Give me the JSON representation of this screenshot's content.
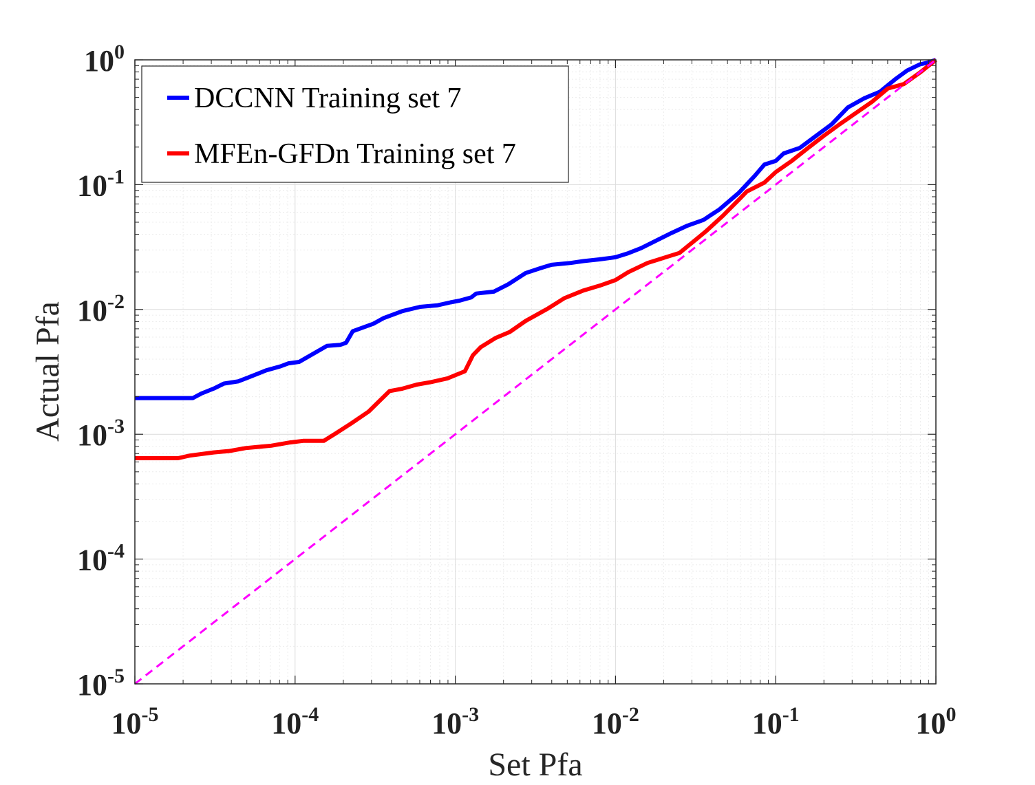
{
  "chart_data": {
    "type": "line",
    "xlabel": "Set Pfa",
    "ylabel": "Actual Pfa",
    "xscale": "log",
    "yscale": "log",
    "xlim": [
      1e-05,
      1
    ],
    "ylim": [
      1e-05,
      1
    ],
    "grid": true,
    "minor_grid": true,
    "legend_position": "top-left",
    "x_ticks": [
      {
        "base": "10",
        "exp": "-5"
      },
      {
        "base": "10",
        "exp": "-4"
      },
      {
        "base": "10",
        "exp": "-3"
      },
      {
        "base": "10",
        "exp": "-2"
      },
      {
        "base": "10",
        "exp": "-1"
      },
      {
        "base": "10",
        "exp": "0"
      }
    ],
    "y_ticks": [
      {
        "base": "10",
        "exp": "-5"
      },
      {
        "base": "10",
        "exp": "-4"
      },
      {
        "base": "10",
        "exp": "-3"
      },
      {
        "base": "10",
        "exp": "-2"
      },
      {
        "base": "10",
        "exp": "-1"
      },
      {
        "base": "10",
        "exp": "0"
      }
    ],
    "series": [
      {
        "name": "DCCNN Training set 7",
        "color": "#0000ff",
        "style": "solid",
        "points": [
          [
            1e-05,
            0.00195
          ],
          [
            2.3e-05,
            0.00195
          ],
          [
            2.6e-05,
            0.00212
          ],
          [
            3.1e-05,
            0.00232
          ],
          [
            3.6e-05,
            0.00255
          ],
          [
            4.4e-05,
            0.00265
          ],
          [
            5.1e-05,
            0.00285
          ],
          [
            6.6e-05,
            0.00325
          ],
          [
            8.1e-05,
            0.0035
          ],
          [
            9.1e-05,
            0.0037
          ],
          [
            0.000106,
            0.0038
          ],
          [
            0.000158,
            0.0051
          ],
          [
            0.000191,
            0.0052
          ],
          [
            0.000208,
            0.0054
          ],
          [
            0.000229,
            0.0067
          ],
          [
            0.000309,
            0.0077
          ],
          [
            0.000355,
            0.0085
          ],
          [
            0.000468,
            0.0097
          ],
          [
            0.000603,
            0.0105
          ],
          [
            0.000776,
            0.0108
          ],
          [
            0.000933,
            0.0114
          ],
          [
            0.001072,
            0.0118
          ],
          [
            0.001259,
            0.0125
          ],
          [
            0.001349,
            0.0134
          ],
          [
            0.001738,
            0.0139
          ],
          [
            0.002138,
            0.0159
          ],
          [
            0.002754,
            0.0196
          ],
          [
            0.003388,
            0.0214
          ],
          [
            0.003981,
            0.0228
          ],
          [
            0.005248,
            0.0236
          ],
          [
            0.00631,
            0.0244
          ],
          [
            0.007943,
            0.0252
          ],
          [
            0.01,
            0.0262
          ],
          [
            0.012,
            0.0282
          ],
          [
            0.01445,
            0.031
          ],
          [
            0.01905,
            0.037
          ],
          [
            0.02239,
            0.041
          ],
          [
            0.02818,
            0.047
          ],
          [
            0.03548,
            0.0522
          ],
          [
            0.0389,
            0.0565
          ],
          [
            0.04467,
            0.0635
          ],
          [
            0.05888,
            0.086
          ],
          [
            0.07413,
            0.118
          ],
          [
            0.08511,
            0.145
          ],
          [
            0.1,
            0.155
          ],
          [
            0.1122,
            0.178
          ],
          [
            0.1413,
            0.197
          ],
          [
            0.1778,
            0.245
          ],
          [
            0.2239,
            0.305
          ],
          [
            0.2818,
            0.415
          ],
          [
            0.3548,
            0.49
          ],
          [
            0.4467,
            0.555
          ],
          [
            0.5623,
            0.705
          ],
          [
            0.6607,
            0.82
          ],
          [
            0.7943,
            0.92
          ],
          [
            0.8913,
            0.95
          ],
          [
            1,
            1
          ]
        ]
      },
      {
        "name": "MFEn-GFDn Training set 7",
        "color": "#ff0000",
        "style": "solid",
        "points": [
          [
            1e-05,
            0.000643
          ],
          [
            1.86e-05,
            0.000643
          ],
          [
            2.2e-05,
            0.000675
          ],
          [
            3.1e-05,
            0.000715
          ],
          [
            3.9e-05,
            0.000735
          ],
          [
            4.9e-05,
            0.000775
          ],
          [
            7.1e-05,
            0.00081
          ],
          [
            9.3e-05,
            0.00086
          ],
          [
            0.000112,
            0.000885
          ],
          [
            0.000151,
            0.000885
          ],
          [
            0.000178,
            0.00101
          ],
          [
            0.000224,
            0.00122
          ],
          [
            0.000288,
            0.00152
          ],
          [
            0.000389,
            0.00222
          ],
          [
            0.000468,
            0.00232
          ],
          [
            0.000575,
            0.0025
          ],
          [
            0.000708,
            0.00262
          ],
          [
            0.000891,
            0.0028
          ],
          [
            0.001148,
            0.0032
          ],
          [
            0.001288,
            0.0043
          ],
          [
            0.001445,
            0.005
          ],
          [
            0.001778,
            0.0059
          ],
          [
            0.002188,
            0.0066
          ],
          [
            0.002754,
            0.0081
          ],
          [
            0.003802,
            0.0102
          ],
          [
            0.004786,
            0.0123
          ],
          [
            0.00631,
            0.0142
          ],
          [
            0.007943,
            0.0155
          ],
          [
            0.01,
            0.0172
          ],
          [
            0.01202,
            0.0199
          ],
          [
            0.01585,
            0.0236
          ],
          [
            0.02138,
            0.0266
          ],
          [
            0.02512,
            0.0284
          ],
          [
            0.03631,
            0.0418
          ],
          [
            0.04677,
            0.0563
          ],
          [
            0.05888,
            0.0757
          ],
          [
            0.06607,
            0.0882
          ],
          [
            0.08511,
            0.104
          ],
          [
            0.1,
            0.126
          ],
          [
            0.1259,
            0.155
          ],
          [
            0.1585,
            0.196
          ],
          [
            0.1995,
            0.246
          ],
          [
            0.2512,
            0.305
          ],
          [
            0.3981,
            0.46
          ],
          [
            0.5012,
            0.59
          ],
          [
            0.6309,
            0.64
          ],
          [
            0.7943,
            0.79
          ],
          [
            1,
            1
          ]
        ]
      },
      {
        "name": "",
        "color": "#ff00ff",
        "style": "dashed",
        "points": [
          [
            1e-05,
            1e-05
          ],
          [
            1,
            1
          ]
        ]
      }
    ]
  }
}
